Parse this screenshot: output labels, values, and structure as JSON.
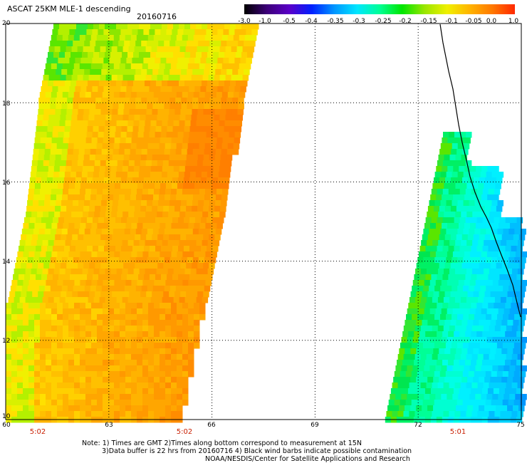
{
  "title": "ASCAT 25KM MLE-1 descending",
  "date": "20160716",
  "colorbar": {
    "labels": [
      "-3.0",
      "-1.0",
      "-0.5",
      "-0.4",
      "-0.35",
      "-0.3",
      "-0.25",
      "-0.2",
      "-0.15",
      "-0.1",
      "-0.05",
      "0.0",
      "1.0"
    ],
    "colors": [
      "#000000",
      "#3c0078",
      "#5a00c8",
      "#0020ff",
      "#0096ff",
      "#00e6ff",
      "#00ff96",
      "#00e600",
      "#9be600",
      "#f0f000",
      "#ffb400",
      "#ff7800",
      "#ff2800"
    ]
  },
  "axes": {
    "lat_labels": [
      "20",
      "18",
      "16",
      "14",
      "12",
      "10"
    ],
    "lon_labels": [
      "60",
      "63",
      "66",
      "69",
      "72",
      "75"
    ],
    "lat_range": [
      10,
      20
    ],
    "lon_range": [
      60,
      75
    ]
  },
  "time_labels": [
    "5:02",
    "5:02",
    "5:01"
  ],
  "notes": {
    "line1": "Note: 1) Times are GMT 2)Times along bottom correspond to measurement at 15N",
    "line2": "3)Data buffer is 22 hrs from 20160716 4) Black wind barbs indicate possible contamination",
    "line3": "NOAA/NESDIS/Center for Satellite Applications and Research"
  }
}
